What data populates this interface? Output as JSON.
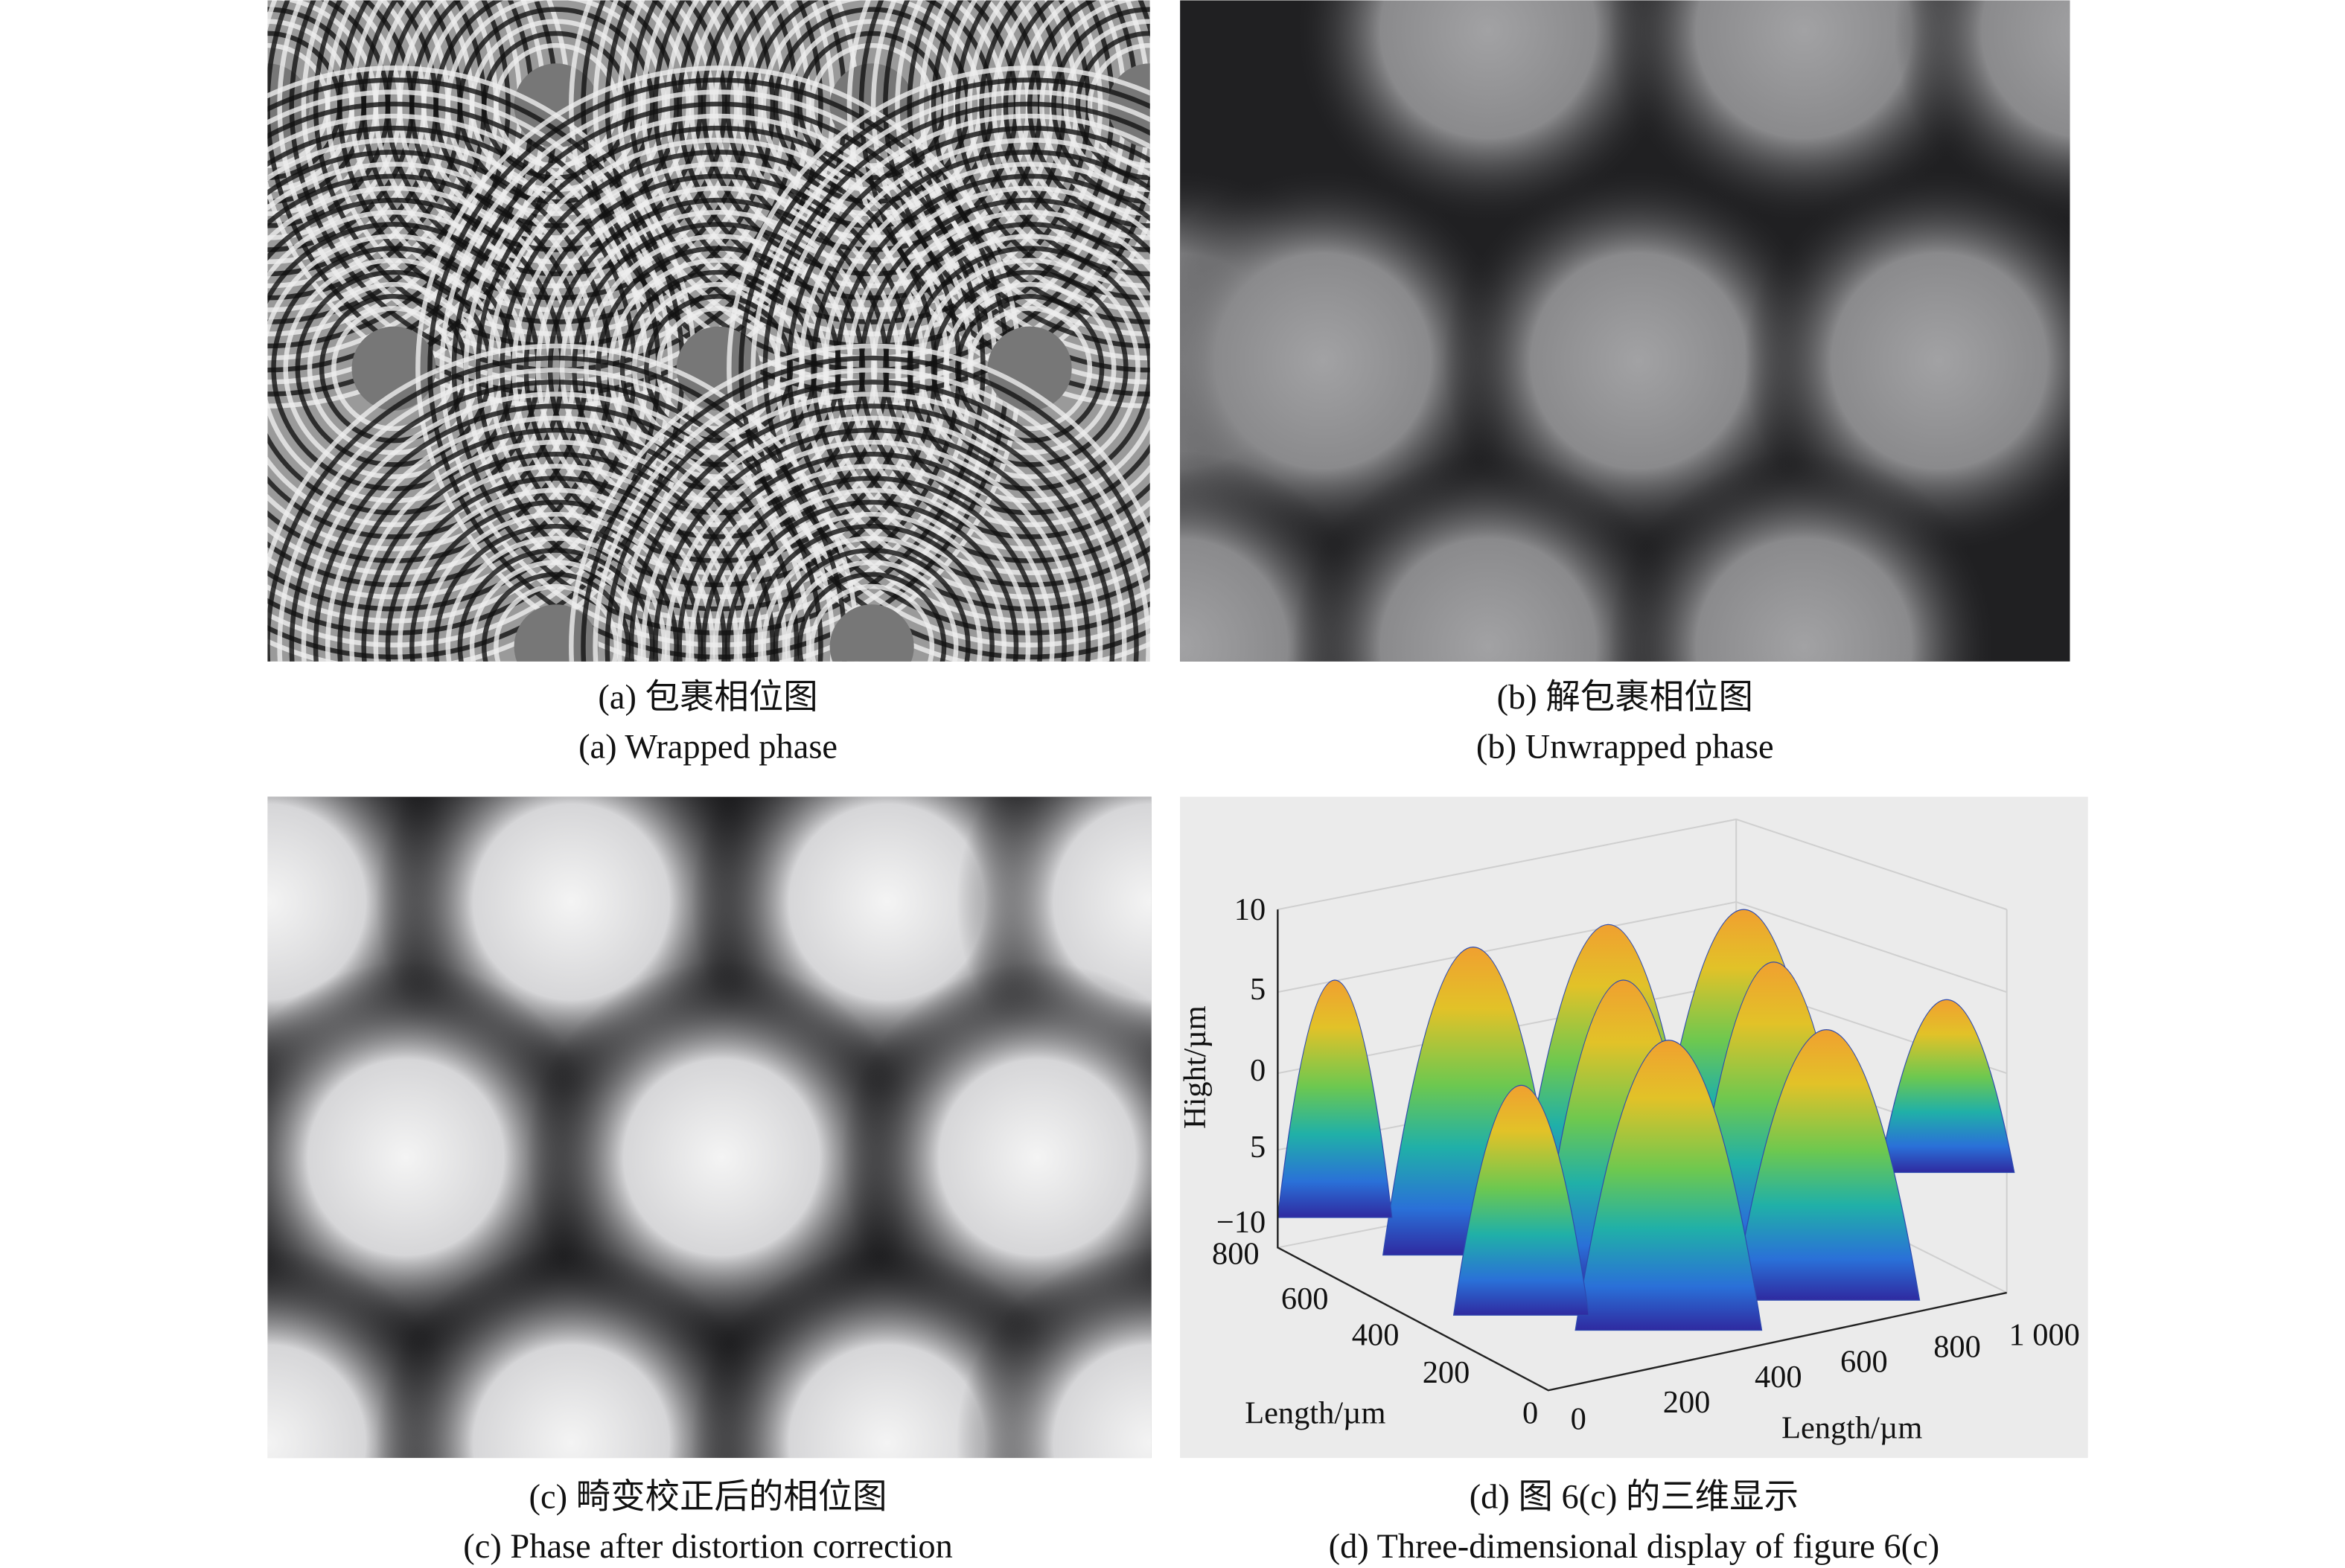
{
  "panels": [
    {
      "caption_zh": "(a) 包裹相位图",
      "caption_en": "(a) Wrapped phase"
    },
    {
      "caption_zh": "(b) 解包裹相位图",
      "caption_en": "(b) Unwrapped phase"
    },
    {
      "caption_zh": "(c) 畸变校正后的相位图",
      "caption_en": "(c) Phase after distortion correction"
    },
    {
      "caption_zh": "(d) 图 6(c) 的三维显示",
      "caption_en": "(d) Three-dimensional display of figure 6(c)"
    }
  ],
  "plot": {
    "z_axis_label": "Hight/µm",
    "y_axis_label": "Length/µm",
    "x_axis_label": "Length/µm",
    "z_ticks": [
      "10",
      "5",
      "0",
      "5",
      "−10"
    ],
    "y_ticks": [
      "800",
      "600",
      "400",
      "200",
      "0"
    ],
    "x_ticks": [
      "0",
      "200",
      "400",
      "600",
      "800",
      "1 000"
    ]
  }
}
